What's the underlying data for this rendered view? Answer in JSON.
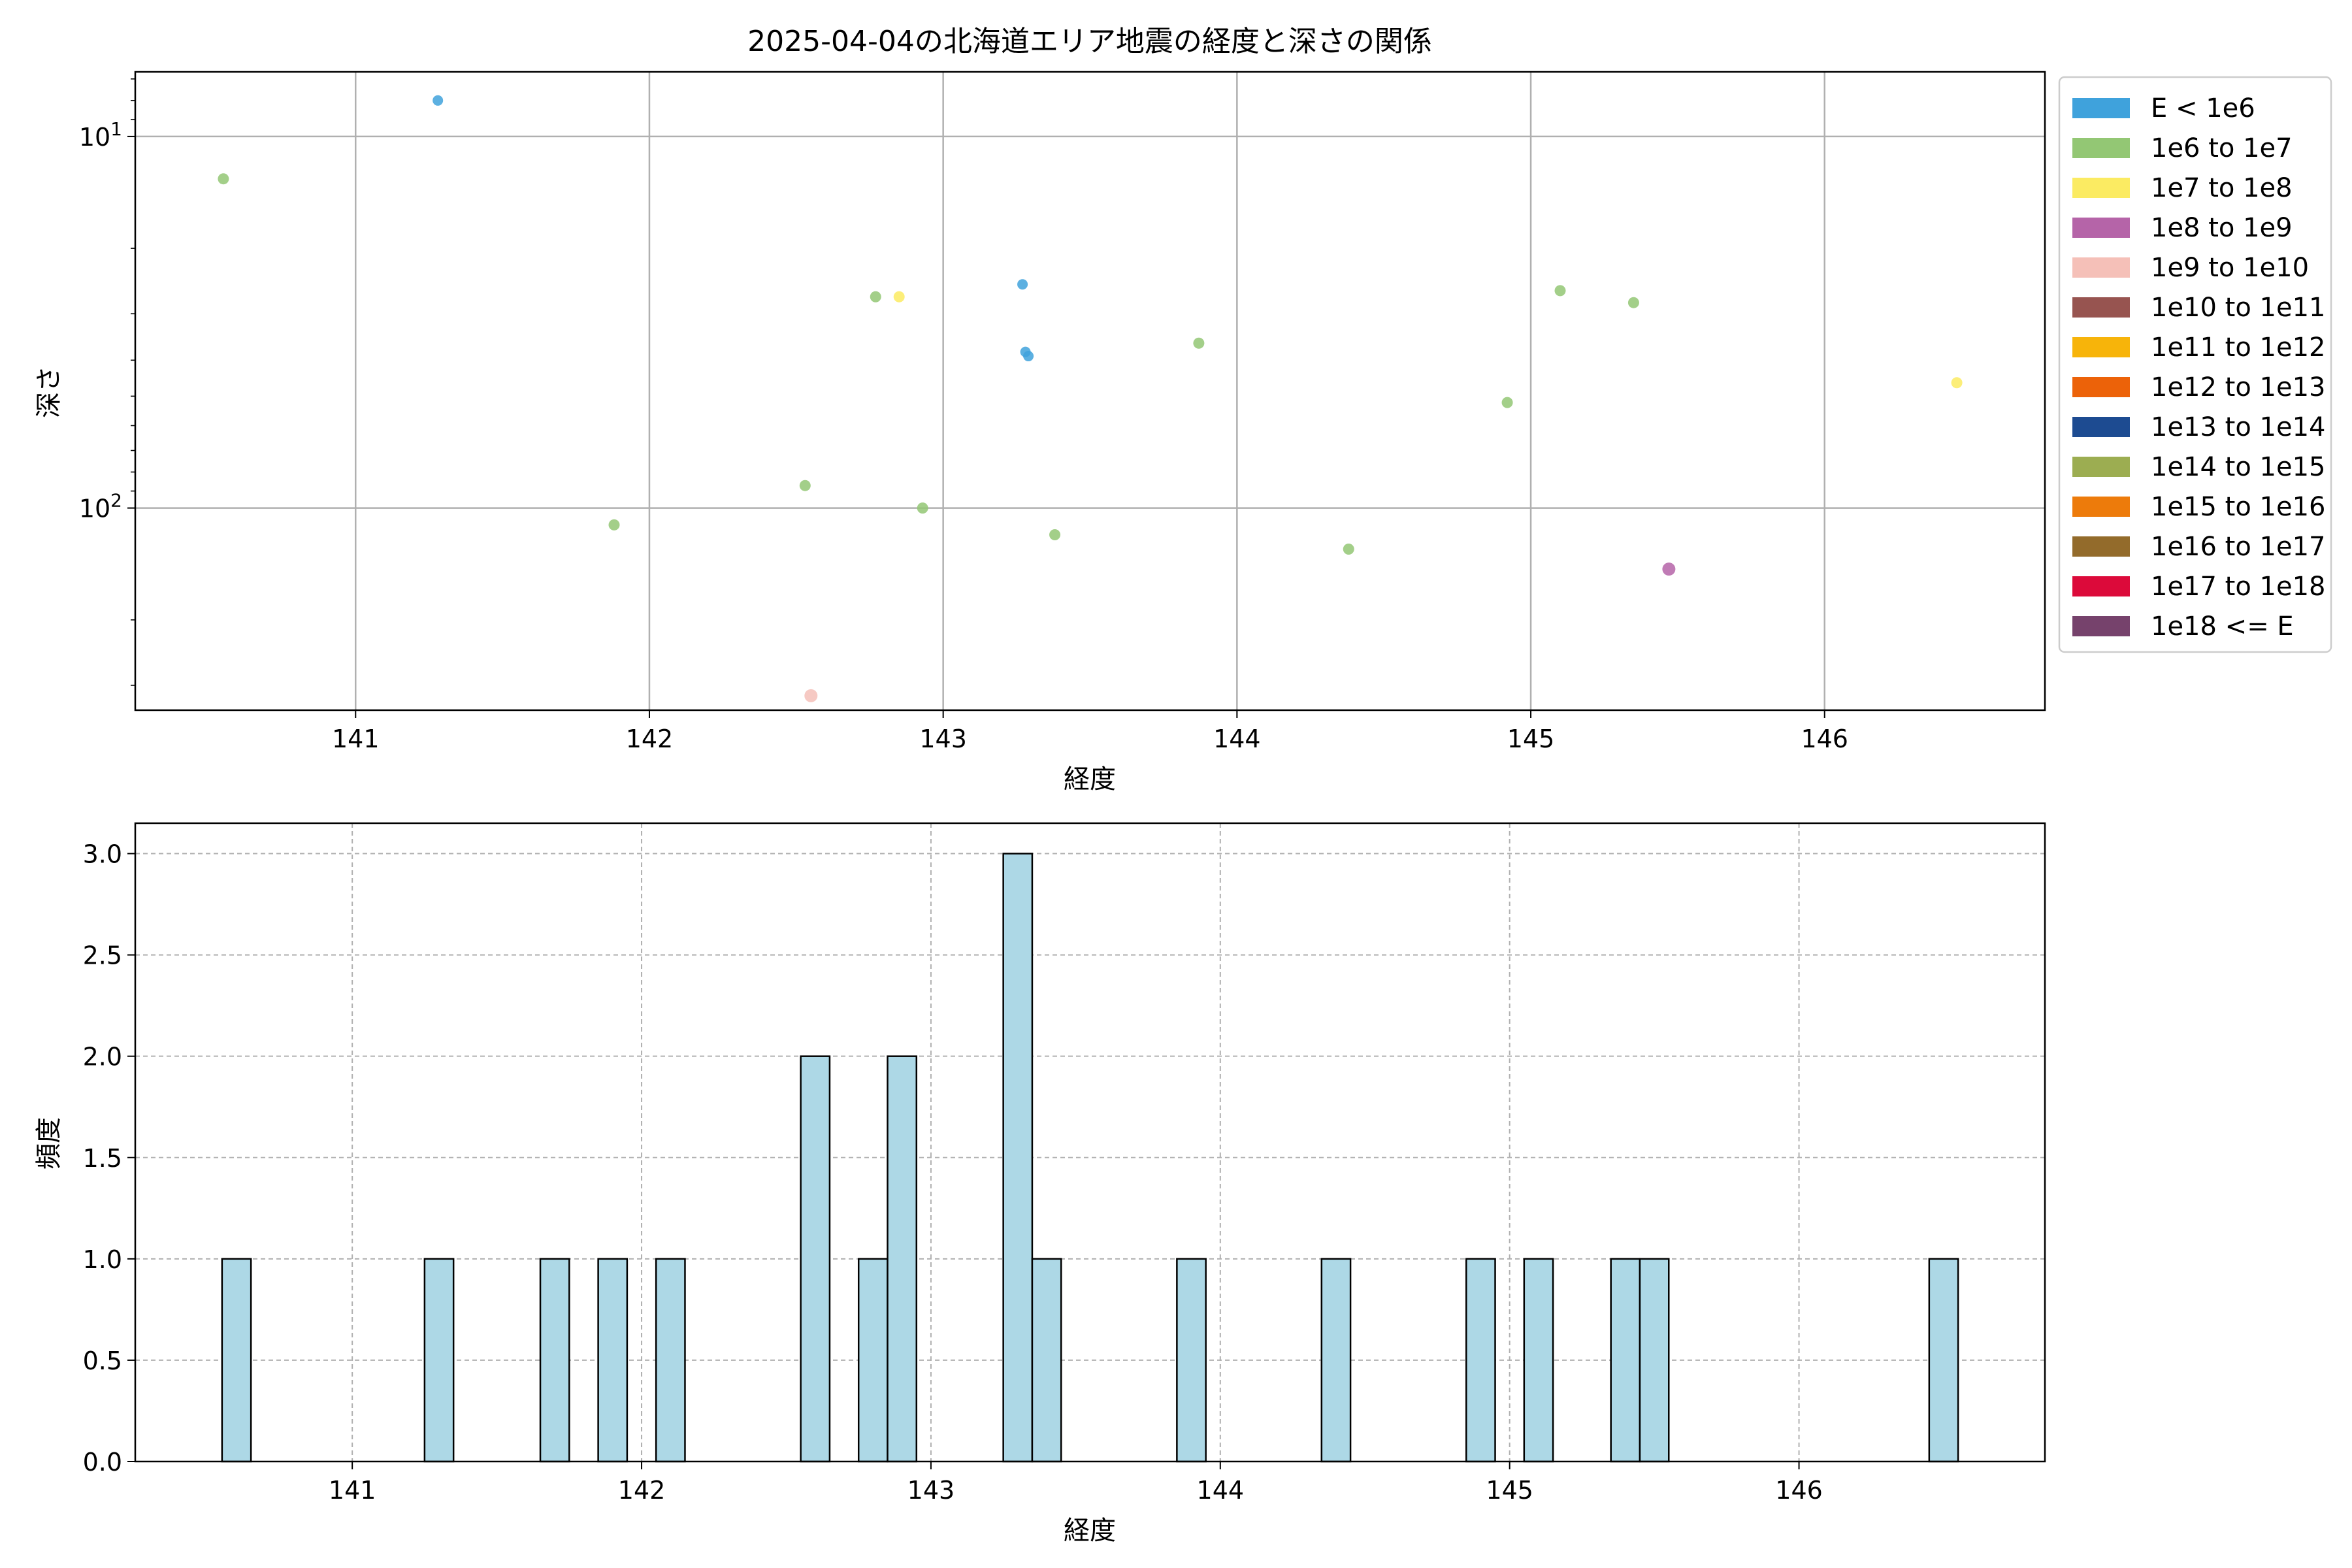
{
  "chart_data": [
    {
      "type": "scatter",
      "title": "2025-04-04の北海道エリア地震の経度と深さの関係",
      "xlabel": "経度",
      "ylabel": "深さ",
      "xlim": [
        140.25,
        146.75
      ],
      "ylim": [
        350,
        6.7
      ],
      "yscale": "log",
      "y_inverted": true,
      "xticks": [
        141,
        142,
        143,
        144,
        145,
        146
      ],
      "yticks": [
        {
          "value": 10,
          "label": "10^1"
        },
        {
          "value": 100,
          "label": "10^2"
        }
      ],
      "grid": true,
      "legend_position": "outside-right",
      "legend": [
        {
          "label": "E < 1e6",
          "color": "#3fa2dc"
        },
        {
          "label": "1e6 to 1e7",
          "color": "#93c774"
        },
        {
          "label": "1e7 to 1e8",
          "color": "#fbeb62"
        },
        {
          "label": "1e8 to 1e9",
          "color": "#b564a8"
        },
        {
          "label": "1e9 to 1e10",
          "color": "#f5c0b8"
        },
        {
          "label": "1e10 to 1e11",
          "color": "#975450"
        },
        {
          "label": "1e11 to 1e12",
          "color": "#f7b40a"
        },
        {
          "label": "1e12 to 1e13",
          "color": "#ec6209"
        },
        {
          "label": "1e13 to 1e14",
          "color": "#1d4b91"
        },
        {
          "label": "1e14 to 1e15",
          "color": "#9cad51"
        },
        {
          "label": "1e15 to 1e16",
          "color": "#ed7b0b"
        },
        {
          "label": "1e16 to 1e17",
          "color": "#936b2b"
        },
        {
          "label": "1e17 to 1e18",
          "color": "#dc0a3a"
        },
        {
          "label": "1e18 <= E",
          "color": "#76426c"
        }
      ],
      "points": [
        {
          "x": 141.28,
          "y": 8,
          "category": "E < 1e6"
        },
        {
          "x": 140.55,
          "y": 13,
          "category": "1e6 to 1e7"
        },
        {
          "x": 142.77,
          "y": 27,
          "category": "1e6 to 1e7"
        },
        {
          "x": 142.85,
          "y": 27,
          "category": "1e7 to 1e8"
        },
        {
          "x": 143.27,
          "y": 25,
          "category": "E < 1e6"
        },
        {
          "x": 143.28,
          "y": 38,
          "category": "E < 1e6"
        },
        {
          "x": 143.29,
          "y": 39,
          "category": "E < 1e6"
        },
        {
          "x": 143.87,
          "y": 36,
          "category": "1e6 to 1e7"
        },
        {
          "x": 145.1,
          "y": 26,
          "category": "1e6 to 1e7"
        },
        {
          "x": 145.35,
          "y": 28,
          "category": "1e6 to 1e7"
        },
        {
          "x": 144.92,
          "y": 52,
          "category": "1e6 to 1e7"
        },
        {
          "x": 146.45,
          "y": 46,
          "category": "1e7 to 1e8"
        },
        {
          "x": 141.88,
          "y": 111,
          "category": "1e6 to 1e7"
        },
        {
          "x": 142.53,
          "y": 87,
          "category": "1e6 to 1e7"
        },
        {
          "x": 142.93,
          "y": 100,
          "category": "1e6 to 1e7"
        },
        {
          "x": 143.38,
          "y": 118,
          "category": "1e6 to 1e7"
        },
        {
          "x": 144.38,
          "y": 129,
          "category": "1e6 to 1e7"
        },
        {
          "x": 145.47,
          "y": 146,
          "category": "1e8 to 1e9"
        },
        {
          "x": 142.55,
          "y": 320,
          "category": "1e9 to 1e10"
        }
      ]
    },
    {
      "type": "bar",
      "xlabel": "経度",
      "ylabel": "頻度",
      "xlim": [
        140.25,
        146.85
      ],
      "ylim": [
        0,
        3.15
      ],
      "xticks": [
        141,
        142,
        143,
        144,
        145,
        146
      ],
      "yticks": [
        "0.0",
        "0.5",
        "1.0",
        "1.5",
        "2.0",
        "2.5",
        "3.0"
      ],
      "grid": true,
      "bar_color": "#add8e6",
      "bar_edge_color": "#000000",
      "bin_width": 0.1,
      "bins": [
        {
          "start": 140.55,
          "count": 1
        },
        {
          "start": 141.25,
          "count": 1
        },
        {
          "start": 141.65,
          "count": 1
        },
        {
          "start": 141.85,
          "count": 1
        },
        {
          "start": 142.05,
          "count": 1
        },
        {
          "start": 142.55,
          "count": 2
        },
        {
          "start": 142.75,
          "count": 1
        },
        {
          "start": 142.85,
          "count": 2
        },
        {
          "start": 143.25,
          "count": 3
        },
        {
          "start": 143.35,
          "count": 1
        },
        {
          "start": 143.85,
          "count": 1
        },
        {
          "start": 144.35,
          "count": 1
        },
        {
          "start": 144.85,
          "count": 1
        },
        {
          "start": 145.05,
          "count": 1
        },
        {
          "start": 145.35,
          "count": 1
        },
        {
          "start": 145.45,
          "count": 1
        },
        {
          "start": 146.45,
          "count": 1
        }
      ]
    }
  ]
}
